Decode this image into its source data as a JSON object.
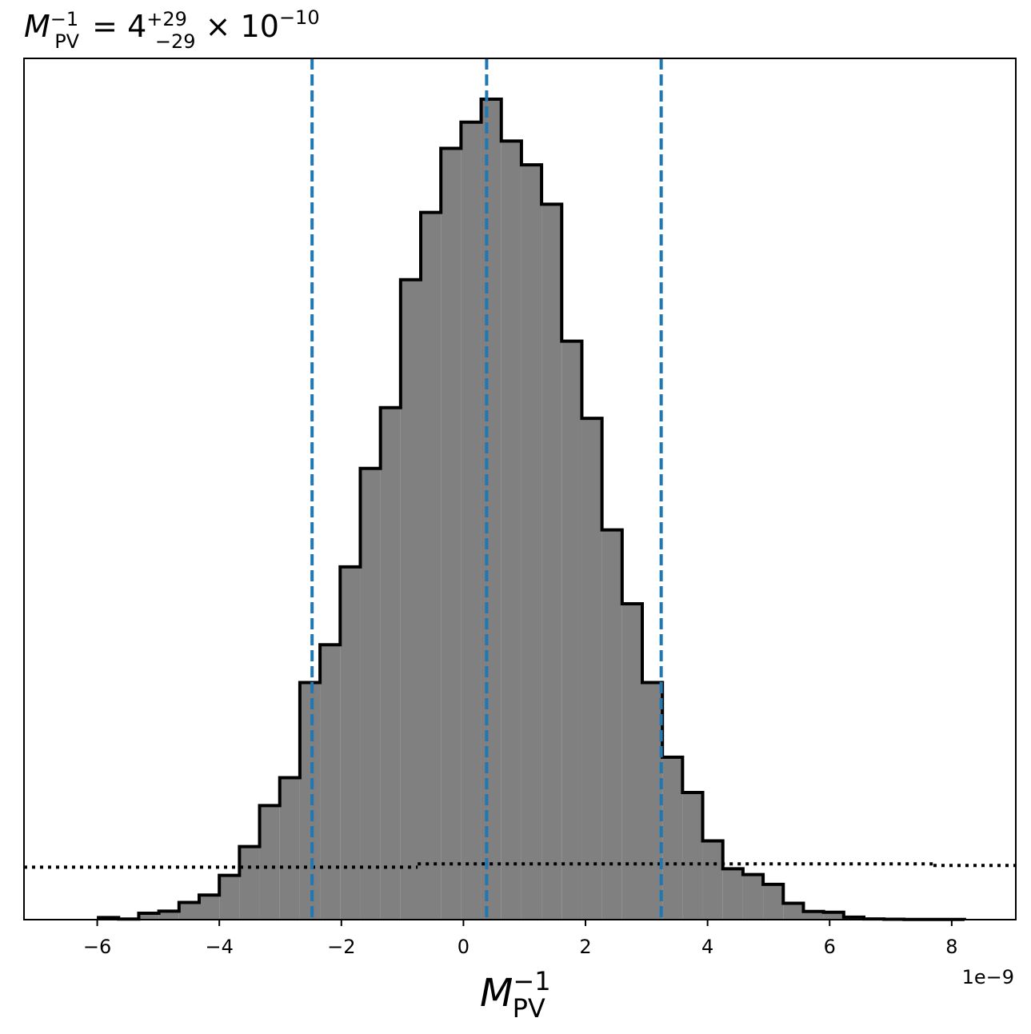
{
  "chart_data": {
    "type": "histogram",
    "title": {
      "symbol": "M",
      "sub": "PV",
      "sup": "−1",
      "equals": " = ",
      "value": "4",
      "plus_err": "+29",
      "minus_err": "−29",
      "times": " × 10",
      "exponent": "−10"
    },
    "xlabel": {
      "symbol": "M",
      "sub": "PV",
      "sup": "−1"
    },
    "x_offset_label": "1e−9",
    "xlim": [
      -7.2,
      9.05
    ],
    "ylim": [
      0,
      1.0
    ],
    "x_ticks": [
      {
        "value": -6,
        "label": "−6"
      },
      {
        "value": -4,
        "label": "−4"
      },
      {
        "value": -2,
        "label": "−2"
      },
      {
        "value": 0,
        "label": "0"
      },
      {
        "value": 2,
        "label": "2"
      },
      {
        "value": 4,
        "label": "4"
      },
      {
        "value": 6,
        "label": "6"
      },
      {
        "value": 8,
        "label": "8"
      }
    ],
    "y_ticks_visible": false,
    "bin_edges": [
      -5.98,
      -5.65,
      -5.32,
      -4.99,
      -4.66,
      -4.33,
      -4.0,
      -3.67,
      -3.34,
      -3.01,
      -2.68,
      -2.35,
      -2.02,
      -1.69,
      -1.36,
      -1.03,
      -0.7,
      -0.37,
      -0.04,
      0.29,
      0.62,
      0.95,
      1.28,
      1.61,
      1.94,
      2.27,
      2.6,
      2.93,
      3.26,
      3.59,
      3.92,
      4.25,
      4.58,
      4.91,
      5.24,
      5.57,
      5.9,
      6.23,
      6.56,
      6.89,
      7.22,
      7.55,
      7.88,
      8.21
    ],
    "bin_heights": [
      0.0026,
      0.0007,
      0.0078,
      0.0104,
      0.021,
      0.03,
      0.054,
      0.089,
      0.139,
      0.173,
      0.289,
      0.335,
      0.43,
      0.55,
      0.624,
      0.78,
      0.862,
      0.94,
      0.972,
      1.0,
      0.949,
      0.92,
      0.872,
      0.705,
      0.611,
      0.475,
      0.385,
      0.289,
      0.198,
      0.155,
      0.096,
      0.062,
      0.055,
      0.043,
      0.02,
      0.01,
      0.009,
      0.003,
      0.0009,
      0.0005,
      0.0003,
      0.0003,
      0.0002
    ],
    "hist_fill": "#808080",
    "hist_edge": "#000000",
    "quantile_lines": [
      {
        "x": -2.48,
        "style": "dashed",
        "color": "#1f77b4"
      },
      {
        "x": 0.38,
        "style": "dashed",
        "color": "#1f77b4"
      },
      {
        "x": 3.24,
        "style": "dashed",
        "color": "#1f77b4"
      }
    ],
    "prior_line": {
      "style": "dotted",
      "color": "#000000",
      "segments": [
        {
          "x0": -7.2,
          "x1": -0.75,
          "y": 0.064
        },
        {
          "x0": -0.75,
          "x1": 7.7,
          "y": 0.068
        },
        {
          "x0": 7.7,
          "x1": 9.05,
          "y": 0.066
        }
      ]
    }
  }
}
